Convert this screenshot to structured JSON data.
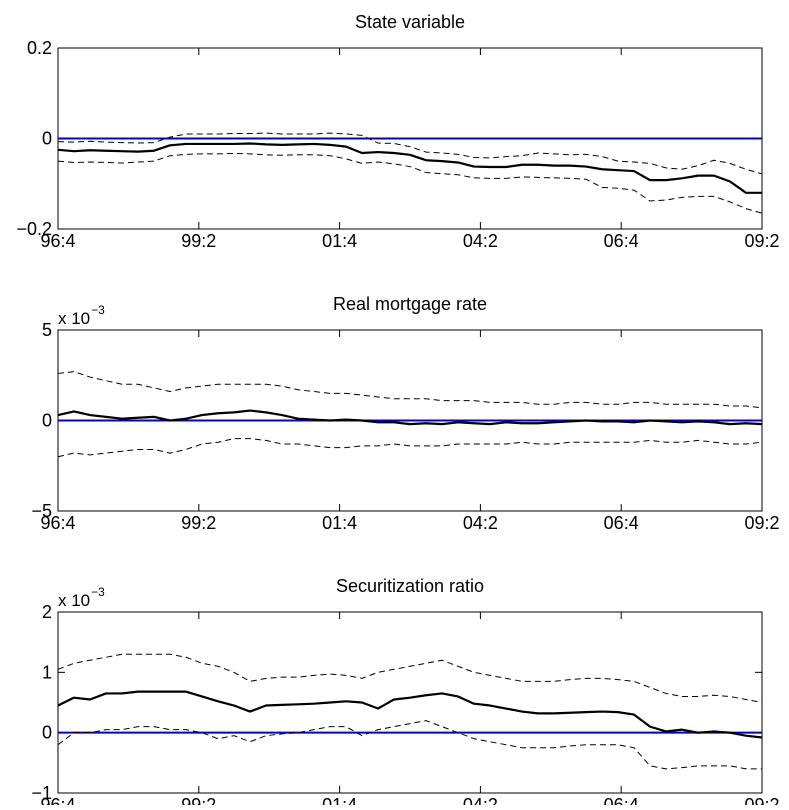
{
  "x_tick_labels": [
    "96:4",
    "99:2",
    "01:4",
    "04:2",
    "06:4",
    "09:2"
  ],
  "colors": {
    "zero_line": "#0000cc",
    "median": "#000000",
    "bands": "#000000"
  },
  "chart_data": [
    {
      "type": "line",
      "title": "State variable",
      "exponent_label": "",
      "ylim": [
        -0.2,
        0.2
      ],
      "yticks": [
        -0.2,
        0,
        0.2
      ],
      "ytick_labels": [
        "−0.2",
        "0",
        "0.2"
      ],
      "grid": false,
      "zero_line": 0,
      "series": [
        {
          "role": "upper",
          "style": "dashed",
          "values": [
            -0.007,
            -0.008,
            -0.006,
            -0.008,
            -0.009,
            -0.01,
            -0.009,
            0.003,
            0.01,
            0.01,
            0.01,
            0.011,
            0.011,
            0.012,
            0.01,
            0.01,
            0.01,
            0.012,
            0.01,
            0.007,
            -0.01,
            -0.011,
            -0.018,
            -0.03,
            -0.032,
            -0.035,
            -0.042,
            -0.043,
            -0.04,
            -0.038,
            -0.032,
            -0.034,
            -0.036,
            -0.035,
            -0.04,
            -0.05,
            -0.052,
            -0.055,
            -0.065,
            -0.068,
            -0.06,
            -0.048,
            -0.055,
            -0.068,
            -0.078
          ]
        },
        {
          "role": "median",
          "style": "solid",
          "values": [
            -0.025,
            -0.028,
            -0.026,
            -0.027,
            -0.028,
            -0.029,
            -0.027,
            -0.015,
            -0.012,
            -0.012,
            -0.012,
            -0.012,
            -0.011,
            -0.013,
            -0.014,
            -0.013,
            -0.012,
            -0.014,
            -0.018,
            -0.032,
            -0.03,
            -0.032,
            -0.036,
            -0.048,
            -0.05,
            -0.053,
            -0.062,
            -0.063,
            -0.063,
            -0.058,
            -0.058,
            -0.06,
            -0.06,
            -0.062,
            -0.068,
            -0.07,
            -0.072,
            -0.092,
            -0.092,
            -0.088,
            -0.082,
            -0.082,
            -0.095,
            -0.12,
            -0.12
          ]
        },
        {
          "role": "lower",
          "style": "dashed",
          "values": [
            -0.05,
            -0.053,
            -0.052,
            -0.053,
            -0.054,
            -0.052,
            -0.05,
            -0.038,
            -0.035,
            -0.034,
            -0.034,
            -0.033,
            -0.034,
            -0.036,
            -0.037,
            -0.036,
            -0.036,
            -0.038,
            -0.045,
            -0.055,
            -0.052,
            -0.056,
            -0.062,
            -0.075,
            -0.078,
            -0.08,
            -0.087,
            -0.088,
            -0.088,
            -0.085,
            -0.086,
            -0.087,
            -0.088,
            -0.09,
            -0.108,
            -0.11,
            -0.114,
            -0.138,
            -0.136,
            -0.13,
            -0.128,
            -0.128,
            -0.14,
            -0.155,
            -0.165
          ]
        }
      ]
    },
    {
      "type": "line",
      "title": "Real mortgage rate",
      "exponent_label": "x 10",
      "exponent_power": "−3",
      "ylim": [
        -5,
        5
      ],
      "yticks": [
        -5,
        0,
        5
      ],
      "ytick_labels": [
        "−5",
        "0",
        "5"
      ],
      "grid": false,
      "zero_line": 0,
      "series": [
        {
          "role": "upper",
          "style": "dashed",
          "values": [
            2.6,
            2.7,
            2.4,
            2.2,
            2.0,
            2.0,
            1.8,
            1.6,
            1.8,
            1.9,
            2.0,
            2.0,
            2.0,
            2.0,
            1.9,
            1.7,
            1.6,
            1.5,
            1.5,
            1.4,
            1.3,
            1.2,
            1.2,
            1.2,
            1.1,
            1.1,
            1.1,
            1.0,
            1.0,
            1.0,
            0.9,
            0.9,
            1.0,
            1.0,
            0.9,
            0.9,
            1.0,
            1.0,
            0.9,
            0.9,
            0.9,
            0.9,
            0.8,
            0.8,
            0.7
          ]
        },
        {
          "role": "median",
          "style": "solid",
          "values": [
            0.3,
            0.5,
            0.3,
            0.2,
            0.1,
            0.15,
            0.2,
            0.0,
            0.1,
            0.3,
            0.4,
            0.45,
            0.55,
            0.45,
            0.3,
            0.1,
            0.05,
            0.0,
            0.05,
            0.0,
            -0.1,
            -0.1,
            -0.2,
            -0.15,
            -0.2,
            -0.1,
            -0.15,
            -0.2,
            -0.1,
            -0.15,
            -0.15,
            -0.1,
            -0.05,
            0.0,
            -0.05,
            -0.05,
            -0.1,
            0.0,
            -0.05,
            -0.1,
            -0.05,
            -0.1,
            -0.2,
            -0.15,
            -0.2
          ]
        },
        {
          "role": "lower",
          "style": "dashed",
          "values": [
            -2.0,
            -1.8,
            -1.9,
            -1.8,
            -1.7,
            -1.6,
            -1.6,
            -1.8,
            -1.6,
            -1.3,
            -1.2,
            -1.0,
            -1.0,
            -1.1,
            -1.3,
            -1.3,
            -1.4,
            -1.5,
            -1.5,
            -1.4,
            -1.4,
            -1.3,
            -1.4,
            -1.4,
            -1.4,
            -1.3,
            -1.3,
            -1.3,
            -1.3,
            -1.2,
            -1.3,
            -1.3,
            -1.2,
            -1.2,
            -1.2,
            -1.2,
            -1.2,
            -1.1,
            -1.2,
            -1.2,
            -1.1,
            -1.2,
            -1.3,
            -1.3,
            -1.2
          ]
        }
      ]
    },
    {
      "type": "line",
      "title": "Securitization ratio",
      "exponent_label": "x 10",
      "exponent_power": "−3",
      "ylim": [
        -1,
        2
      ],
      "yticks": [
        -1,
        0,
        1,
        2
      ],
      "ytick_labels": [
        "−1",
        "0",
        "1",
        "2"
      ],
      "grid": false,
      "zero_line": 0,
      "series": [
        {
          "role": "upper",
          "style": "dashed",
          "values": [
            1.05,
            1.15,
            1.2,
            1.25,
            1.3,
            1.3,
            1.3,
            1.3,
            1.25,
            1.15,
            1.1,
            1.0,
            0.85,
            0.9,
            0.92,
            0.92,
            0.95,
            0.97,
            0.95,
            0.9,
            1.0,
            1.05,
            1.1,
            1.15,
            1.2,
            1.1,
            1.0,
            0.95,
            0.9,
            0.85,
            0.85,
            0.85,
            0.88,
            0.9,
            0.9,
            0.88,
            0.85,
            0.75,
            0.65,
            0.6,
            0.6,
            0.62,
            0.6,
            0.55,
            0.5
          ]
        },
        {
          "role": "median",
          "style": "solid",
          "values": [
            0.45,
            0.58,
            0.55,
            0.65,
            0.65,
            0.68,
            0.68,
            0.68,
            0.68,
            0.6,
            0.52,
            0.45,
            0.35,
            0.45,
            0.46,
            0.47,
            0.48,
            0.5,
            0.52,
            0.5,
            0.4,
            0.55,
            0.58,
            0.62,
            0.65,
            0.6,
            0.48,
            0.45,
            0.4,
            0.35,
            0.32,
            0.32,
            0.33,
            0.34,
            0.35,
            0.34,
            0.3,
            0.1,
            0.02,
            0.05,
            0.0,
            0.02,
            0.0,
            -0.05,
            -0.08
          ]
        },
        {
          "role": "lower",
          "style": "dashed",
          "values": [
            -0.2,
            0.0,
            0.0,
            0.05,
            0.05,
            0.1,
            0.1,
            0.05,
            0.05,
            0.0,
            -0.1,
            -0.05,
            -0.15,
            -0.05,
            -0.02,
            0.0,
            0.05,
            0.1,
            0.1,
            -0.05,
            0.05,
            0.1,
            0.15,
            0.2,
            0.1,
            0.0,
            -0.1,
            -0.15,
            -0.2,
            -0.25,
            -0.25,
            -0.25,
            -0.22,
            -0.2,
            -0.2,
            -0.2,
            -0.25,
            -0.55,
            -0.6,
            -0.58,
            -0.55,
            -0.55,
            -0.55,
            -0.6,
            -0.6
          ]
        }
      ]
    }
  ]
}
